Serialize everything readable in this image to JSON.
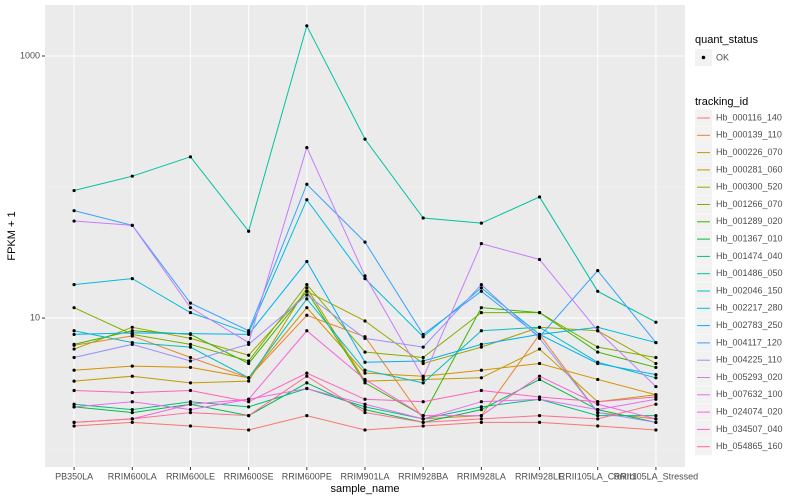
{
  "chart_data": {
    "type": "line",
    "x_label": "sample_name",
    "y_label": "FPKM + 1",
    "categories": [
      "PB350LA",
      "RRIM600LA",
      "RRIM600LE",
      "RRIM600SE",
      "RRIM600PE",
      "RRIM901LA",
      "RRIM928BA",
      "RRIM928LA",
      "RRIM928LE",
      "RRII105LA_Control",
      "RRII105LA_Stressed"
    ],
    "log_y": true,
    "ylim": [
      0.73,
      2450
    ],
    "yticks": [
      10,
      1000
    ],
    "grid": true,
    "point_color": "#000000",
    "shape_legend": {
      "title": "quant_status",
      "labels": [
        "OK"
      ]
    },
    "legend_title": "tracking_id",
    "series": [
      {
        "name": "Hb_000116_140",
        "color": "#F8766D",
        "values": [
          1.5,
          1.6,
          1.5,
          1.4,
          1.8,
          1.4,
          1.5,
          1.6,
          1.6,
          1.5,
          1.4
        ]
      },
      {
        "name": "Hb_000139_110",
        "color": "#EA8331",
        "values": [
          6.2,
          7.3,
          5,
          3.5,
          10.5,
          7.2,
          1.7,
          1.8,
          7.5,
          1.9,
          1.7
        ]
      },
      {
        "name": "Hb_000226_070",
        "color": "#D89000",
        "values": [
          4,
          4.3,
          4.2,
          3.5,
          12,
          3.8,
          3.6,
          4,
          4.5,
          3.4,
          2.6
        ]
      },
      {
        "name": "Hb_000281_060",
        "color": "#C09B00",
        "values": [
          3.3,
          3.6,
          3.2,
          3.3,
          17,
          3.3,
          3.4,
          3.5,
          5.8,
          2.3,
          2.6
        ]
      },
      {
        "name": "Hb_000300_520",
        "color": "#A3A500",
        "values": [
          5.8,
          8.5,
          7,
          5.2,
          16,
          9.5,
          4.5,
          6,
          8.5,
          8,
          4.5
        ]
      },
      {
        "name": "Hb_001266_070",
        "color": "#7CAE00",
        "values": [
          12,
          7.5,
          6.3,
          4.7,
          18,
          5.5,
          5,
          11,
          11,
          6,
          5
        ]
      },
      {
        "name": "Hb_001289_020",
        "color": "#39B600",
        "values": [
          6.3,
          8,
          7.5,
          4.5,
          16,
          3.2,
          1.8,
          12,
          11,
          5.5,
          4.2
        ]
      },
      {
        "name": "Hb_001367_010",
        "color": "#00BB4E",
        "values": [
          2.1,
          1.9,
          2.2,
          1.8,
          3.2,
          2,
          1.6,
          2,
          3.4,
          2,
          1.6
        ]
      },
      {
        "name": "Hb_001474_040",
        "color": "#00BF7D",
        "values": [
          2.2,
          2,
          2.3,
          2.1,
          2.9,
          2.1,
          1.7,
          2.1,
          2.4,
          1.8,
          1.8
        ]
      },
      {
        "name": "Hb_001486_050",
        "color": "#00C1A3",
        "values": [
          94,
          121,
          170,
          46,
          1700,
          232,
          58,
          53,
          84,
          16,
          9.3
        ]
      },
      {
        "name": "Hb_002046_150",
        "color": "#00BFC4",
        "values": [
          8,
          6.5,
          6,
          3.5,
          14,
          4,
          3.2,
          8,
          8.5,
          4.6,
          3.5
        ]
      },
      {
        "name": "Hb_002217_280",
        "color": "#00BAE0",
        "values": [
          18,
          20,
          11,
          7.7,
          80,
          20,
          7.2,
          17,
          7.5,
          8.5,
          6.5
        ]
      },
      {
        "name": "Hb_002783_250",
        "color": "#00B0F6",
        "values": [
          7.5,
          7.7,
          7.6,
          7.5,
          27,
          4.6,
          4.7,
          6.3,
          7.5,
          4.5,
          3.7
        ]
      },
      {
        "name": "Hb_004117_120",
        "color": "#35A2FF",
        "values": [
          66,
          51,
          13,
          8,
          105,
          38,
          7.5,
          16,
          7.2,
          23,
          6.5
        ]
      },
      {
        "name": "Hb_004225_110",
        "color": "#9590FF",
        "values": [
          5,
          6.3,
          4.7,
          6.3,
          15,
          7,
          6,
          18,
          7,
          1.9,
          1.6
        ]
      },
      {
        "name": "Hb_005293_020",
        "color": "#C77CFF",
        "values": [
          55,
          51,
          12,
          6.5,
          200,
          21,
          3.5,
          37,
          28,
          8,
          3
        ]
      },
      {
        "name": "Hb_007632_100",
        "color": "#E76BF3",
        "values": [
          2.1,
          2.3,
          2,
          2.4,
          2.9,
          2.2,
          1.7,
          2.3,
          2.4,
          2,
          2.4
        ]
      },
      {
        "name": "Hb_024074_020",
        "color": "#FA62DB",
        "values": [
          1.6,
          1.7,
          2.2,
          2.4,
          8,
          3.4,
          1.8,
          1.8,
          3.6,
          2.2,
          1.7
        ]
      },
      {
        "name": "Hb_034507_040",
        "color": "#FF62BC",
        "values": [
          2.8,
          2.7,
          2.8,
          2.3,
          3.8,
          2.4,
          2.3,
          2.8,
          2.5,
          2.3,
          2.5
        ]
      },
      {
        "name": "Hb_054865_160",
        "color": "#FF6C91",
        "values": [
          1.6,
          1.7,
          1.9,
          1.8,
          3.6,
          1.9,
          1.6,
          1.7,
          1.8,
          1.7,
          2.2
        ]
      }
    ]
  }
}
